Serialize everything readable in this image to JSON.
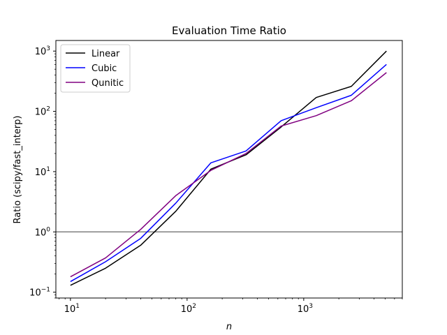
{
  "chart_data": {
    "type": "line",
    "title": "Evaluation Time Ratio",
    "xlabel": "n",
    "ylabel": "Ratio (scipy/fast_interp)",
    "xscale": "log",
    "yscale": "log",
    "xlim": [
      7.5,
      7000
    ],
    "ylim": [
      0.08,
      1500
    ],
    "x_ticks": [
      {
        "value": 10,
        "base": "10",
        "exp": "1"
      },
      {
        "value": 100,
        "base": "10",
        "exp": "2"
      },
      {
        "value": 1000,
        "base": "10",
        "exp": "3"
      }
    ],
    "y_ticks": [
      {
        "value": 0.1,
        "base": "10",
        "exp": "−1"
      },
      {
        "value": 1,
        "base": "10",
        "exp": "0"
      },
      {
        "value": 10,
        "base": "10",
        "exp": "1"
      },
      {
        "value": 100,
        "base": "10",
        "exp": "2"
      },
      {
        "value": 1000,
        "base": "10",
        "exp": "3"
      }
    ],
    "reference_line": {
      "y": 1,
      "color": "#808080"
    },
    "legend_position": "upper-left",
    "x": [
      10,
      20,
      40,
      80,
      160,
      320,
      640,
      1280,
      2560,
      5120
    ],
    "series": [
      {
        "name": "Linear",
        "color": "#000000",
        "values": [
          0.13,
          0.25,
          0.6,
          2.2,
          11,
          19,
          55,
          170,
          260,
          1000
        ]
      },
      {
        "name": "Cubic",
        "color": "#0000ff",
        "values": [
          0.15,
          0.32,
          0.78,
          3.0,
          14,
          22,
          70,
          115,
          185,
          600
        ]
      },
      {
        "name": "Qunitic",
        "color": "#800080",
        "values": [
          0.18,
          0.37,
          1.1,
          4.0,
          10.5,
          20,
          57,
          85,
          150,
          440
        ]
      }
    ]
  }
}
